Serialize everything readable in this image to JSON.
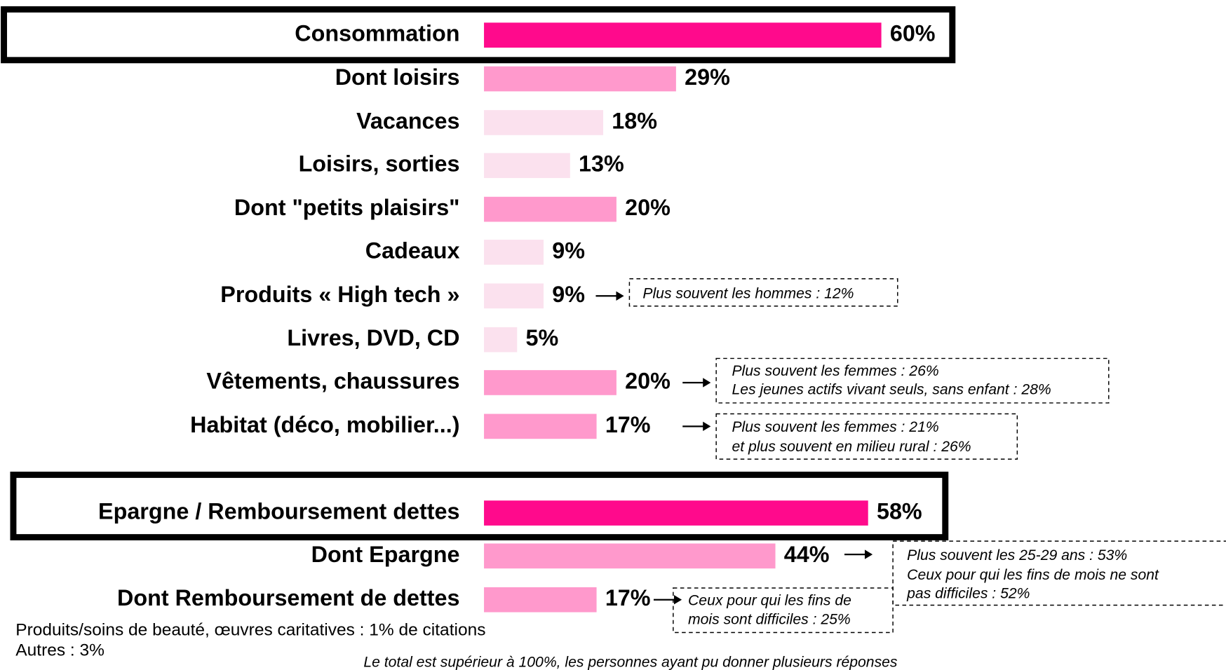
{
  "chart_data": {
    "type": "bar",
    "categories": [
      "Consommation",
      "Dont loisirs",
      "Vacances",
      "Loisirs, sorties",
      "Dont \"petits plaisirs\"",
      "Cadeaux",
      "Produits « High tech »",
      "Livres, DVD, CD",
      "Vêtements, chaussures",
      "Habitat (déco, mobilier...)",
      "Epargne / Remboursement dettes",
      "Dont Epargne",
      "Dont Remboursement de dettes"
    ],
    "values": [
      60,
      29,
      18,
      13,
      20,
      9,
      9,
      5,
      20,
      17,
      58,
      44,
      17
    ],
    "value_labels": [
      "60%",
      "29%",
      "18%",
      "13%",
      "20%",
      "9%",
      "9%",
      "5%",
      "20%",
      "17%",
      "58%",
      "44%",
      "17%"
    ],
    "colors": [
      "#ff0a8c",
      "#ff99cc",
      "#fbe1ee",
      "#fbe1ee",
      "#ff99cc",
      "#fbe1ee",
      "#fbe1ee",
      "#fbe1ee",
      "#ff99cc",
      "#ff99cc",
      "#ff0a8c",
      "#ff99cc",
      "#ff99cc"
    ],
    "annotations": [
      {
        "lines": [
          "Plus souvent les hommes : 12%"
        ]
      },
      {
        "lines": [
          "Plus souvent les femmes : 26%",
          "Les jeunes actifs vivant seuls, sans enfant : 28%"
        ]
      },
      {
        "lines": [
          "Plus souvent les femmes : 21%",
          "et plus souvent en milieu rural : 26%"
        ]
      },
      {
        "lines": [
          "Plus souvent les 25-29 ans : 53%",
          "Ceux pour qui les fins de mois ne sont",
          "pas difficiles : 52%"
        ]
      },
      {
        "lines": [
          "Ceux pour qui les fins de",
          "mois sont difficiles : 25%"
        ]
      }
    ],
    "footnotes": [
      "Produits/soins de beauté, œuvres caritatives : 1% de citations",
      "Autres : 3%"
    ],
    "note": "Le total est supérieur à 100%, les personnes ayant pu donner plusieurs réponses"
  }
}
